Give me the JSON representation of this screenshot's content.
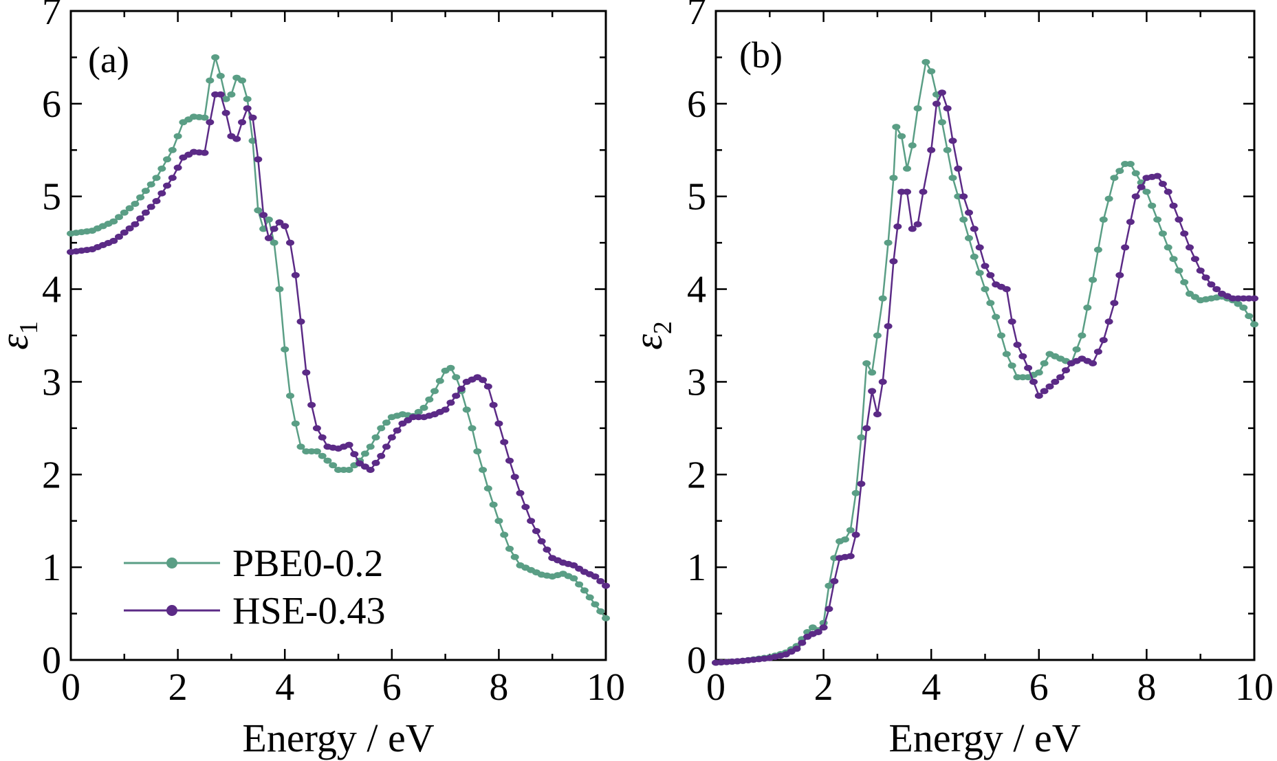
{
  "colors": {
    "PBE0-0.2": "#5a9e85",
    "HSE-0.43": "#5b2a86",
    "axis": "#000000"
  },
  "chart_data": [
    {
      "type": "line",
      "panel_label": "(a)",
      "xlabel": "Energy / eV",
      "ylabel_symbol": "ε",
      "ylabel_subscript": "1",
      "xlim": [
        0,
        10
      ],
      "ylim": [
        0,
        7
      ],
      "xticks": [
        0,
        2,
        4,
        6,
        8,
        10
      ],
      "yticks": [
        0,
        1,
        2,
        3,
        4,
        5,
        6,
        7
      ],
      "marker": "circle",
      "legend": {
        "position": "bottom-left"
      },
      "series": [
        {
          "name": "PBE0-0.2",
          "color": "#5a9e85",
          "points": [
            [
              0,
              4.6
            ],
            [
              0.4,
              4.63
            ],
            [
              0.8,
              4.73
            ],
            [
              1.2,
              4.92
            ],
            [
              1.6,
              5.2
            ],
            [
              1.9,
              5.5
            ],
            [
              2.1,
              5.8
            ],
            [
              2.3,
              5.86
            ],
            [
              2.5,
              5.85
            ],
            [
              2.6,
              6.25
            ],
            [
              2.7,
              6.5
            ],
            [
              2.8,
              6.3
            ],
            [
              2.9,
              6.05
            ],
            [
              3.0,
              6.1
            ],
            [
              3.1,
              6.28
            ],
            [
              3.2,
              6.25
            ],
            [
              3.3,
              6.05
            ],
            [
              3.4,
              5.6
            ],
            [
              3.5,
              4.85
            ],
            [
              3.6,
              4.65
            ],
            [
              3.7,
              4.75
            ],
            [
              3.8,
              4.5
            ],
            [
              3.9,
              4.0
            ],
            [
              4.0,
              3.35
            ],
            [
              4.1,
              2.85
            ],
            [
              4.2,
              2.55
            ],
            [
              4.3,
              2.3
            ],
            [
              4.4,
              2.25
            ],
            [
              4.6,
              2.25
            ],
            [
              4.8,
              2.15
            ],
            [
              5.0,
              2.05
            ],
            [
              5.2,
              2.05
            ],
            [
              5.4,
              2.15
            ],
            [
              5.6,
              2.3
            ],
            [
              5.8,
              2.5
            ],
            [
              6.0,
              2.62
            ],
            [
              6.2,
              2.65
            ],
            [
              6.4,
              2.63
            ],
            [
              6.6,
              2.72
            ],
            [
              6.8,
              2.9
            ],
            [
              7.0,
              3.12
            ],
            [
              7.1,
              3.15
            ],
            [
              7.2,
              3.05
            ],
            [
              7.3,
              2.9
            ],
            [
              7.5,
              2.5
            ],
            [
              7.6,
              2.25
            ],
            [
              7.8,
              1.85
            ],
            [
              8.0,
              1.5
            ],
            [
              8.2,
              1.2
            ],
            [
              8.4,
              1.02
            ],
            [
              8.6,
              0.97
            ],
            [
              8.8,
              0.92
            ],
            [
              9.0,
              0.9
            ],
            [
              9.2,
              0.93
            ],
            [
              9.4,
              0.88
            ],
            [
              9.6,
              0.75
            ],
            [
              9.8,
              0.6
            ],
            [
              10.0,
              0.45
            ]
          ]
        },
        {
          "name": "HSE-0.43",
          "color": "#5b2a86",
          "points": [
            [
              0,
              4.4
            ],
            [
              0.4,
              4.43
            ],
            [
              0.8,
              4.52
            ],
            [
              1.2,
              4.7
            ],
            [
              1.6,
              4.95
            ],
            [
              1.9,
              5.2
            ],
            [
              2.1,
              5.42
            ],
            [
              2.3,
              5.48
            ],
            [
              2.5,
              5.47
            ],
            [
              2.6,
              5.8
            ],
            [
              2.7,
              6.1
            ],
            [
              2.8,
              6.1
            ],
            [
              2.9,
              5.9
            ],
            [
              3.0,
              5.65
            ],
            [
              3.1,
              5.62
            ],
            [
              3.2,
              5.8
            ],
            [
              3.3,
              5.95
            ],
            [
              3.4,
              5.85
            ],
            [
              3.5,
              5.4
            ],
            [
              3.6,
              4.8
            ],
            [
              3.7,
              4.55
            ],
            [
              3.8,
              4.65
            ],
            [
              3.9,
              4.72
            ],
            [
              4.0,
              4.68
            ],
            [
              4.1,
              4.5
            ],
            [
              4.2,
              4.15
            ],
            [
              4.3,
              3.65
            ],
            [
              4.4,
              3.1
            ],
            [
              4.5,
              2.75
            ],
            [
              4.6,
              2.5
            ],
            [
              4.8,
              2.3
            ],
            [
              5.0,
              2.28
            ],
            [
              5.2,
              2.32
            ],
            [
              5.4,
              2.12
            ],
            [
              5.6,
              2.05
            ],
            [
              5.8,
              2.2
            ],
            [
              6.0,
              2.4
            ],
            [
              6.2,
              2.55
            ],
            [
              6.4,
              2.62
            ],
            [
              6.6,
              2.62
            ],
            [
              6.8,
              2.65
            ],
            [
              7.0,
              2.7
            ],
            [
              7.2,
              2.85
            ],
            [
              7.4,
              3.0
            ],
            [
              7.6,
              3.05
            ],
            [
              7.7,
              3.02
            ],
            [
              7.8,
              2.95
            ],
            [
              8.0,
              2.55
            ],
            [
              8.2,
              2.15
            ],
            [
              8.4,
              1.8
            ],
            [
              8.6,
              1.5
            ],
            [
              8.8,
              1.28
            ],
            [
              9.0,
              1.1
            ],
            [
              9.2,
              1.05
            ],
            [
              9.4,
              1.02
            ],
            [
              9.6,
              0.95
            ],
            [
              9.8,
              0.9
            ],
            [
              10.0,
              0.8
            ]
          ]
        }
      ]
    },
    {
      "type": "line",
      "panel_label": "(b)",
      "xlabel": "Energy / eV",
      "ylabel_symbol": "ε",
      "ylabel_subscript": "2",
      "xlim": [
        0,
        10
      ],
      "ylim": [
        0,
        7
      ],
      "xticks": [
        0,
        2,
        4,
        6,
        8,
        10
      ],
      "yticks": [
        0,
        1,
        2,
        3,
        4,
        5,
        6,
        7
      ],
      "marker": "circle",
      "series": [
        {
          "name": "PBE0-0.2",
          "color": "#5a9e85",
          "points": [
            [
              0,
              -0.03
            ],
            [
              0.5,
              -0.01
            ],
            [
              1.0,
              0.03
            ],
            [
              1.3,
              0.08
            ],
            [
              1.5,
              0.15
            ],
            [
              1.7,
              0.3
            ],
            [
              1.8,
              0.35
            ],
            [
              1.9,
              0.32
            ],
            [
              2.0,
              0.4
            ],
            [
              2.1,
              0.8
            ],
            [
              2.2,
              1.1
            ],
            [
              2.3,
              1.28
            ],
            [
              2.4,
              1.3
            ],
            [
              2.5,
              1.4
            ],
            [
              2.6,
              1.8
            ],
            [
              2.7,
              2.4
            ],
            [
              2.8,
              3.2
            ],
            [
              2.9,
              3.1
            ],
            [
              3.0,
              3.5
            ],
            [
              3.1,
              3.9
            ],
            [
              3.2,
              4.5
            ],
            [
              3.3,
              5.2
            ],
            [
              3.35,
              5.75
            ],
            [
              3.45,
              5.65
            ],
            [
              3.55,
              5.3
            ],
            [
              3.65,
              5.55
            ],
            [
              3.75,
              5.95
            ],
            [
              3.9,
              6.45
            ],
            [
              4.0,
              6.35
            ],
            [
              4.1,
              6.1
            ],
            [
              4.2,
              5.8
            ],
            [
              4.3,
              5.5
            ],
            [
              4.4,
              5.2
            ],
            [
              4.5,
              5.0
            ],
            [
              4.6,
              4.75
            ],
            [
              4.8,
              4.35
            ],
            [
              5.0,
              4.0
            ],
            [
              5.2,
              3.7
            ],
            [
              5.4,
              3.3
            ],
            [
              5.6,
              3.05
            ],
            [
              5.8,
              3.05
            ],
            [
              6.0,
              3.1
            ],
            [
              6.2,
              3.3
            ],
            [
              6.4,
              3.25
            ],
            [
              6.6,
              3.2
            ],
            [
              6.8,
              3.5
            ],
            [
              7.0,
              4.1
            ],
            [
              7.2,
              4.75
            ],
            [
              7.4,
              5.2
            ],
            [
              7.6,
              5.35
            ],
            [
              7.7,
              5.35
            ],
            [
              7.8,
              5.25
            ],
            [
              8.0,
              5.05
            ],
            [
              8.2,
              4.75
            ],
            [
              8.4,
              4.45
            ],
            [
              8.6,
              4.2
            ],
            [
              8.8,
              3.95
            ],
            [
              9.0,
              3.88
            ],
            [
              9.2,
              3.9
            ],
            [
              9.4,
              3.92
            ],
            [
              9.6,
              3.88
            ],
            [
              9.8,
              3.8
            ],
            [
              10.0,
              3.62
            ]
          ]
        },
        {
          "name": "HSE-0.43",
          "color": "#5b2a86",
          "points": [
            [
              0,
              -0.03
            ],
            [
              0.5,
              -0.01
            ],
            [
              1.0,
              0.02
            ],
            [
              1.3,
              0.06
            ],
            [
              1.5,
              0.12
            ],
            [
              1.7,
              0.25
            ],
            [
              1.8,
              0.28
            ],
            [
              1.9,
              0.3
            ],
            [
              2.0,
              0.35
            ],
            [
              2.1,
              0.55
            ],
            [
              2.2,
              0.85
            ],
            [
              2.3,
              1.1
            ],
            [
              2.5,
              1.12
            ],
            [
              2.6,
              1.35
            ],
            [
              2.7,
              1.9
            ],
            [
              2.8,
              2.5
            ],
            [
              2.9,
              2.9
            ],
            [
              3.0,
              2.65
            ],
            [
              3.1,
              3.0
            ],
            [
              3.2,
              3.6
            ],
            [
              3.3,
              4.3
            ],
            [
              3.45,
              5.05
            ],
            [
              3.55,
              5.05
            ],
            [
              3.65,
              4.65
            ],
            [
              3.75,
              4.7
            ],
            [
              3.85,
              5.05
            ],
            [
              4.0,
              5.5
            ],
            [
              4.1,
              6.0
            ],
            [
              4.2,
              6.12
            ],
            [
              4.3,
              5.95
            ],
            [
              4.4,
              5.6
            ],
            [
              4.5,
              5.3
            ],
            [
              4.6,
              5.0
            ],
            [
              4.8,
              4.65
            ],
            [
              5.0,
              4.25
            ],
            [
              5.2,
              4.05
            ],
            [
              5.4,
              4.0
            ],
            [
              5.5,
              3.65
            ],
            [
              5.6,
              3.4
            ],
            [
              5.8,
              3.15
            ],
            [
              6.0,
              2.85
            ],
            [
              6.2,
              2.95
            ],
            [
              6.4,
              3.05
            ],
            [
              6.6,
              3.2
            ],
            [
              6.8,
              3.25
            ],
            [
              7.0,
              3.2
            ],
            [
              7.2,
              3.45
            ],
            [
              7.4,
              3.85
            ],
            [
              7.6,
              4.45
            ],
            [
              7.8,
              5.0
            ],
            [
              8.0,
              5.2
            ],
            [
              8.2,
              5.22
            ],
            [
              8.4,
              5.05
            ],
            [
              8.6,
              4.75
            ],
            [
              8.8,
              4.45
            ],
            [
              9.0,
              4.2
            ],
            [
              9.2,
              4.05
            ],
            [
              9.4,
              3.95
            ],
            [
              9.6,
              3.9
            ],
            [
              9.8,
              3.9
            ],
            [
              10.0,
              3.9
            ]
          ]
        }
      ]
    }
  ]
}
